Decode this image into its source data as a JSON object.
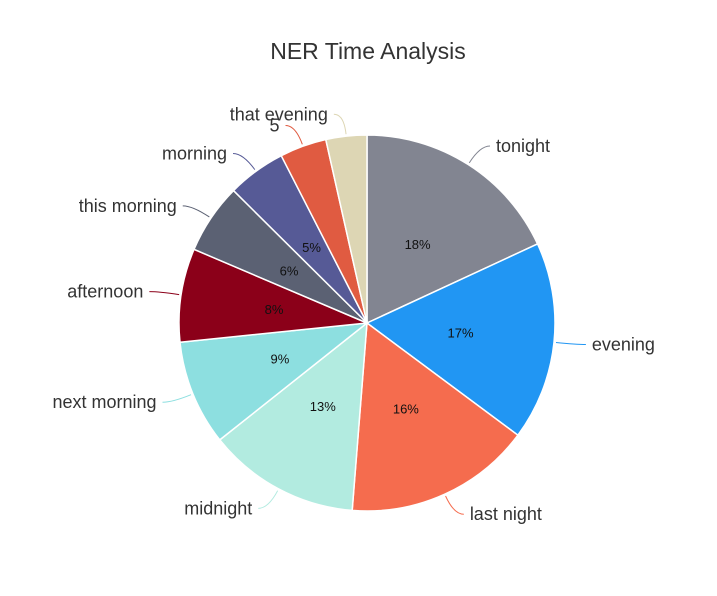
{
  "chart_data": {
    "type": "pie",
    "title": "NER Time Analysis",
    "slices": [
      {
        "name": "tonight",
        "value": 18,
        "label": "18%",
        "color": "#828591"
      },
      {
        "name": "evening",
        "value": 17,
        "label": "17%",
        "color": "#2196f3"
      },
      {
        "name": "last night",
        "value": 16,
        "label": "16%",
        "color": "#f56c4e"
      },
      {
        "name": "midnight",
        "value": 13,
        "label": "13%",
        "color": "#b2ebe0"
      },
      {
        "name": "next morning",
        "value": 9,
        "label": "9%",
        "color": "#8ddfe0"
      },
      {
        "name": "afternoon",
        "value": 8,
        "label": "8%",
        "color": "#8b0019"
      },
      {
        "name": "this morning",
        "value": 6,
        "label": "6%",
        "color": "#5b6173"
      },
      {
        "name": "morning",
        "value": 5,
        "label": "5%",
        "color": "#565a96"
      },
      {
        "name": "5",
        "value": 4,
        "label": "",
        "color": "#e05b41"
      },
      {
        "name": "that evening",
        "value": 3.5,
        "label": "",
        "color": "#ddd6b4"
      }
    ]
  }
}
